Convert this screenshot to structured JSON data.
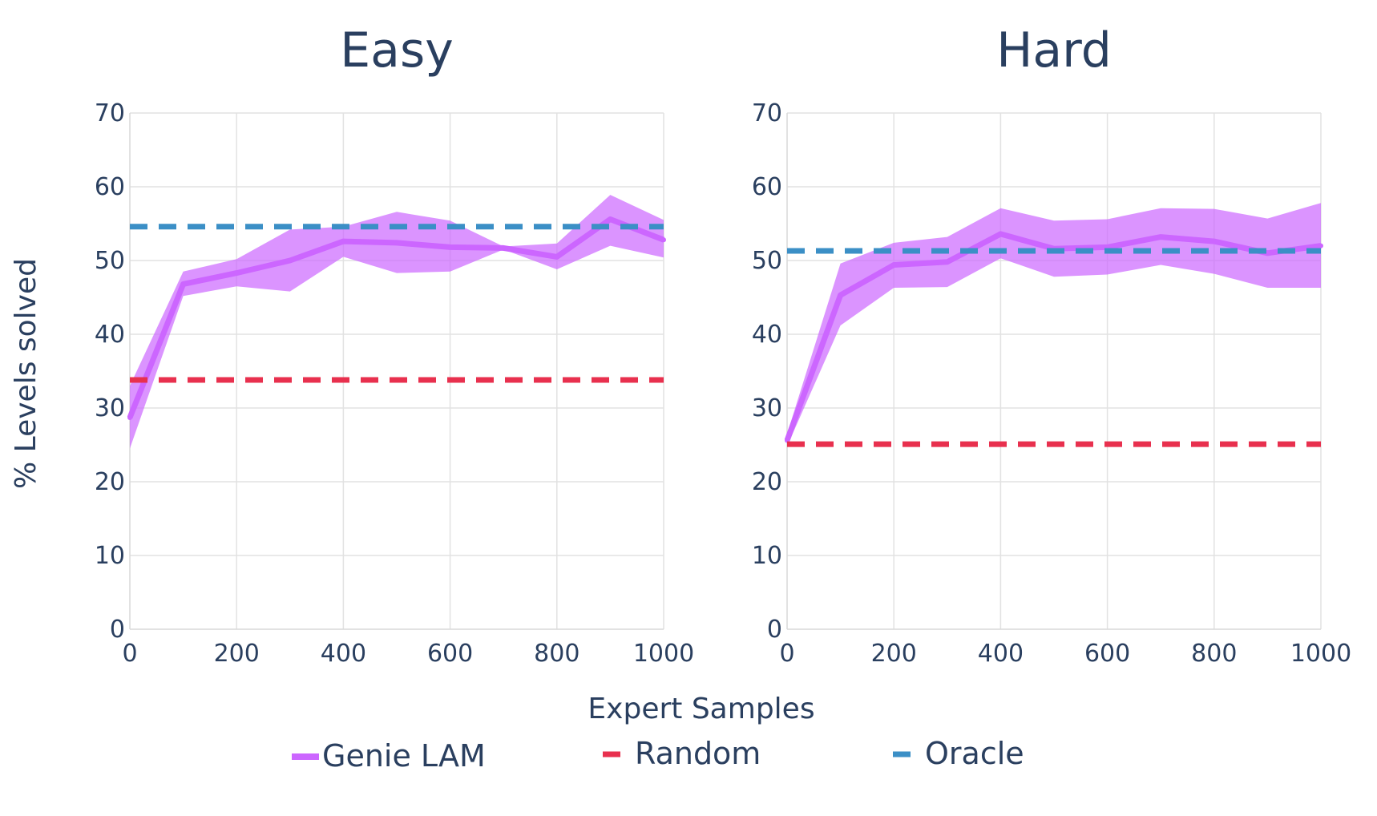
{
  "chart_data": {
    "type": "line",
    "x_axis_title": "Expert Samples",
    "y_axis_title": "% Levels solved",
    "xlim": [
      0,
      1000
    ],
    "ylim": [
      0,
      70
    ],
    "x_ticks": [
      0,
      200,
      400,
      600,
      800,
      1000
    ],
    "y_ticks": [
      0,
      10,
      20,
      30,
      40,
      50,
      60,
      70
    ],
    "grid": true,
    "legend_position": "bottom",
    "legend": [
      {
        "name": "Genie LAM",
        "color": "#cc66ff",
        "style": "solid"
      },
      {
        "name": "Random",
        "color": "#e8304e",
        "style": "dashed"
      },
      {
        "name": "Oracle",
        "color": "#3b8fc6",
        "style": "dashed"
      }
    ],
    "panels": [
      {
        "title": "Easy",
        "series": [
          {
            "name": "Genie LAM",
            "x": [
              0,
              100,
              200,
              300,
              400,
              500,
              600,
              700,
              800,
              900,
              1000
            ],
            "y": [
              28.7,
              46.8,
              48.3,
              50.0,
              52.6,
              52.4,
              51.8,
              51.7,
              50.5,
              55.6,
              52.8
            ],
            "y_upper": [
              33.0,
              48.5,
              50.2,
              54.2,
              54.6,
              56.6,
              55.4,
              51.9,
              52.3,
              58.9,
              55.5
            ],
            "y_lower": [
              24.5,
              45.2,
              46.5,
              45.8,
              50.5,
              48.3,
              48.5,
              51.5,
              48.8,
              52.0,
              50.4
            ]
          },
          {
            "name": "Random",
            "x": [
              0,
              1000
            ],
            "y": [
              33.8,
              33.8
            ]
          },
          {
            "name": "Oracle",
            "x": [
              0,
              1000
            ],
            "y": [
              54.6,
              54.6
            ]
          }
        ]
      },
      {
        "title": "Hard",
        "series": [
          {
            "name": "Genie LAM",
            "x": [
              0,
              100,
              200,
              300,
              400,
              500,
              600,
              700,
              800,
              900,
              1000
            ],
            "y": [
              25.6,
              45.3,
              49.4,
              49.8,
              53.6,
              51.6,
              51.8,
              53.2,
              52.6,
              51.0,
              52.0
            ],
            "y_upper": [
              26.5,
              49.6,
              52.4,
              53.2,
              57.1,
              55.4,
              55.6,
              57.1,
              57.0,
              55.7,
              57.8
            ],
            "y_lower": [
              24.8,
              41.2,
              46.3,
              46.4,
              50.3,
              47.8,
              48.1,
              49.4,
              48.2,
              46.3,
              46.3
            ]
          },
          {
            "name": "Random",
            "x": [
              0,
              1000
            ],
            "y": [
              25.1,
              25.1
            ]
          },
          {
            "name": "Oracle",
            "x": [
              0,
              1000
            ],
            "y": [
              51.3,
              51.3
            ]
          }
        ]
      }
    ]
  }
}
